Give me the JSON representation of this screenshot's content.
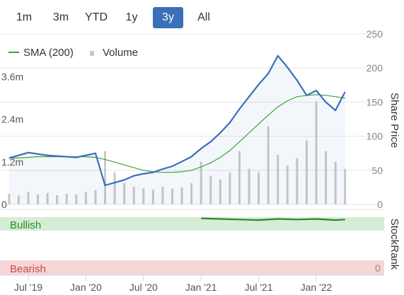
{
  "range_selector": {
    "buttons": [
      {
        "label": "1m",
        "active": false
      },
      {
        "label": "3m",
        "active": false
      },
      {
        "label": "YTD",
        "active": false
      },
      {
        "label": "1y",
        "active": false
      },
      {
        "label": "3y",
        "active": true
      },
      {
        "label": "All",
        "active": false
      }
    ]
  },
  "legend": {
    "sma_label": "SMA (200)",
    "volume_label": "Volume"
  },
  "colors": {
    "price": "#3b6fb6",
    "sma": "#3aa335",
    "volume": "#c9c9c9",
    "bullish_band": "#d5ecd5",
    "bearish_band": "#f6d6d6",
    "stockrank": "#2a8a2a",
    "active_button": "#3b6fb6"
  },
  "stockrank": {
    "axis_title": "StockRank",
    "bullish_label": "Bullish",
    "bearish_label": "Bearish",
    "zero_label": "0"
  },
  "chart_data": {
    "type": "line",
    "title": "",
    "x_ticks": [
      "Jul '19",
      "Jan '20",
      "Jul '20",
      "Jan '21",
      "Jul '21",
      "Jan '22"
    ],
    "y_right_label": "Share Price",
    "y_right_ticks": [
      "250",
      "200",
      "150",
      "100",
      "50",
      "0"
    ],
    "y_right_range": [
      0,
      250
    ],
    "y_left_ticks": [
      "3.6m",
      "2.4m",
      "1.2m",
      "0"
    ],
    "y_left_range": [
      0,
      4800000
    ],
    "grid": true,
    "legend_position": "top-left",
    "series": [
      {
        "name": "Price",
        "x": [
          "2019-05",
          "2019-06",
          "2019-07",
          "2019-08",
          "2019-09",
          "2019-10",
          "2019-11",
          "2019-12",
          "2020-01",
          "2020-02",
          "2020-03",
          "2020-04",
          "2020-05",
          "2020-06",
          "2020-07",
          "2020-08",
          "2020-09",
          "2020-10",
          "2020-11",
          "2020-12",
          "2021-01",
          "2021-02",
          "2021-03",
          "2021-04",
          "2021-05",
          "2021-06",
          "2021-07",
          "2021-08",
          "2021-09",
          "2021-10",
          "2021-11",
          "2021-12",
          "2022-01",
          "2022-02",
          "2022-03",
          "2022-04"
        ],
        "values": [
          68,
          72,
          76,
          74,
          72,
          71,
          70,
          69,
          72,
          75,
          28,
          32,
          36,
          42,
          45,
          47,
          52,
          56,
          63,
          70,
          82,
          92,
          105,
          120,
          140,
          158,
          176,
          192,
          218,
          201,
          182,
          160,
          167,
          150,
          138,
          165
        ]
      },
      {
        "name": "SMA (200)",
        "x": [
          "2019-05",
          "2019-06",
          "2019-07",
          "2019-08",
          "2019-09",
          "2019-10",
          "2019-11",
          "2019-12",
          "2020-01",
          "2020-02",
          "2020-03",
          "2020-04",
          "2020-05",
          "2020-06",
          "2020-07",
          "2020-08",
          "2020-09",
          "2020-10",
          "2020-11",
          "2020-12",
          "2021-01",
          "2021-02",
          "2021-03",
          "2021-04",
          "2021-05",
          "2021-06",
          "2021-07",
          "2021-08",
          "2021-09",
          "2021-10",
          "2021-11",
          "2021-12",
          "2022-01",
          "2022-02",
          "2022-03",
          "2022-04"
        ],
        "values": [
          68,
          68,
          69,
          70,
          70,
          70,
          70,
          70,
          70,
          69,
          66,
          62,
          58,
          54,
          50,
          48,
          47,
          47,
          48,
          50,
          55,
          61,
          69,
          79,
          92,
          105,
          118,
          131,
          143,
          152,
          158,
          160,
          161,
          160,
          158,
          156
        ]
      },
      {
        "name": "Volume",
        "x": [
          "2019-05",
          "2019-06",
          "2019-07",
          "2019-08",
          "2019-09",
          "2019-10",
          "2019-11",
          "2019-12",
          "2020-01",
          "2020-02",
          "2020-03",
          "2020-04",
          "2020-05",
          "2020-06",
          "2020-07",
          "2020-08",
          "2020-09",
          "2020-10",
          "2020-11",
          "2020-12",
          "2021-01",
          "2021-02",
          "2021-03",
          "2021-04",
          "2021-05",
          "2021-06",
          "2021-07",
          "2021-08",
          "2021-09",
          "2021-10",
          "2021-11",
          "2021-12",
          "2022-01",
          "2022-02",
          "2022-03",
          "2022-04"
        ],
        "values": [
          300000,
          250000,
          350000,
          280000,
          320000,
          260000,
          300000,
          280000,
          350000,
          400000,
          1500000,
          900000,
          600000,
          500000,
          450000,
          420000,
          500000,
          450000,
          480000,
          600000,
          1200000,
          800000,
          700000,
          900000,
          1500000,
          1000000,
          900000,
          2200000,
          1400000,
          1100000,
          1300000,
          1800000,
          2900000,
          1500000,
          1200000,
          1000000
        ]
      },
      {
        "name": "StockRank",
        "x": [
          "2021-01",
          "2021-03",
          "2021-05",
          "2021-07",
          "2021-09",
          "2021-11",
          "2022-01",
          "2022-03",
          "2022-04"
        ],
        "values": [
          98,
          97,
          96,
          95,
          97,
          96,
          97,
          95,
          96
        ]
      }
    ]
  }
}
